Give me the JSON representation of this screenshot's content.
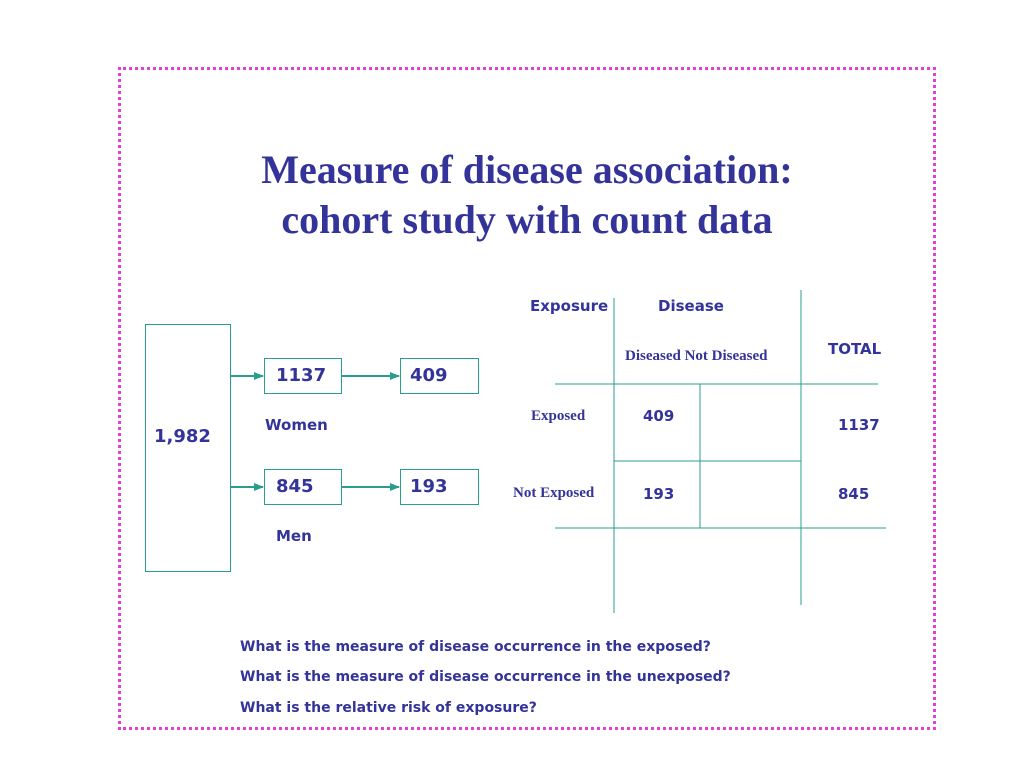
{
  "title": {
    "line1": "Measure of disease association:",
    "line2": "cohort study with count data"
  },
  "flow": {
    "total": "1,982",
    "women_total": "1137",
    "women_diseased": "409",
    "women_label": "Women",
    "men_total": "845",
    "men_diseased": "193",
    "men_label": "Men"
  },
  "table": {
    "exposure_header": "Exposure",
    "disease_header": "Disease",
    "subheader": "Diseased Not Diseased",
    "total_header": "TOTAL",
    "rows": [
      {
        "label": "Exposed",
        "diseased": "409",
        "not_diseased": "",
        "total": "1137"
      },
      {
        "label": "Not Exposed",
        "diseased": "193",
        "not_diseased": "",
        "total": "845"
      }
    ]
  },
  "questions": [
    "What is the measure of disease occurrence in the exposed?",
    "What is the measure of disease occurrence in the unexposed?",
    "What is the relative risk of exposure?"
  ],
  "colors": {
    "text": "#333399",
    "lines": "#2a9d8f",
    "border": "#e23fd8"
  }
}
